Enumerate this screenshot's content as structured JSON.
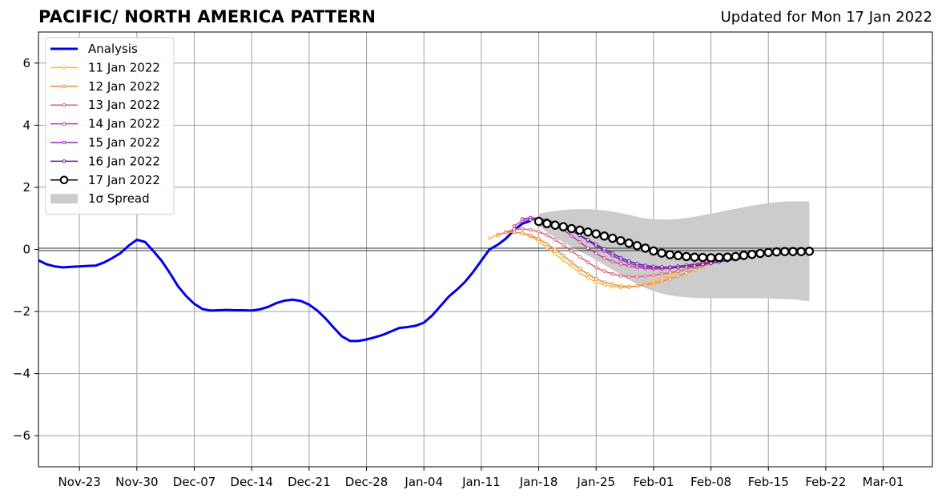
{
  "chart_data": {
    "type": "line",
    "title": "PACIFIC/ NORTH AMERICA PATTERN",
    "subtitle": "Updated for Mon 17 Jan 2022",
    "xlabel": "",
    "ylabel": "",
    "x_ticks": [
      "Nov-23",
      "Nov-30",
      "Dec-07",
      "Dec-14",
      "Dec-21",
      "Dec-28",
      "Jan-04",
      "Jan-11",
      "Jan-18",
      "Jan-25",
      "Feb-01",
      "Feb-08",
      "Feb-15",
      "Feb-22",
      "Mar-01"
    ],
    "x_tick_dates": [
      "2021-11-23",
      "2021-11-30",
      "2021-12-07",
      "2021-12-14",
      "2021-12-21",
      "2021-12-28",
      "2022-01-04",
      "2022-01-11",
      "2022-01-18",
      "2022-01-25",
      "2022-02-01",
      "2022-02-08",
      "2022-02-15",
      "2022-02-22",
      "2022-03-01"
    ],
    "xlim": [
      "2021-11-18",
      "2022-03-07"
    ],
    "ylim": [
      -7,
      7
    ],
    "y_ticks": [
      -6,
      -4,
      -2,
      0,
      2,
      4,
      6
    ],
    "grid": true,
    "legend_position": "top-left",
    "series": [
      {
        "name": "Analysis",
        "color": "#0000ee",
        "style": "thick",
        "points": [
          [
            "2021-11-18",
            -0.35
          ],
          [
            "2021-11-19",
            -0.48
          ],
          [
            "2021-11-20",
            -0.55
          ],
          [
            "2021-11-21",
            -0.58
          ],
          [
            "2021-11-22",
            -0.56
          ],
          [
            "2021-11-23",
            -0.55
          ],
          [
            "2021-11-24",
            -0.53
          ],
          [
            "2021-11-25",
            -0.52
          ],
          [
            "2021-11-26",
            -0.42
          ],
          [
            "2021-11-27",
            -0.28
          ],
          [
            "2021-11-28",
            -0.12
          ],
          [
            "2021-11-29",
            0.12
          ],
          [
            "2021-11-30",
            0.31
          ],
          [
            "2021-12-01",
            0.24
          ],
          [
            "2021-12-02",
            -0.05
          ],
          [
            "2021-12-03",
            -0.36
          ],
          [
            "2021-12-04",
            -0.75
          ],
          [
            "2021-12-05",
            -1.18
          ],
          [
            "2021-12-06",
            -1.5
          ],
          [
            "2021-12-07",
            -1.75
          ],
          [
            "2021-12-08",
            -1.92
          ],
          [
            "2021-12-09",
            -1.97
          ],
          [
            "2021-12-10",
            -1.96
          ],
          [
            "2021-12-11",
            -1.95
          ],
          [
            "2021-12-12",
            -1.96
          ],
          [
            "2021-12-13",
            -1.96
          ],
          [
            "2021-12-14",
            -1.97
          ],
          [
            "2021-12-15",
            -1.93
          ],
          [
            "2021-12-16",
            -1.85
          ],
          [
            "2021-12-17",
            -1.73
          ],
          [
            "2021-12-18",
            -1.65
          ],
          [
            "2021-12-19",
            -1.62
          ],
          [
            "2021-12-20",
            -1.66
          ],
          [
            "2021-12-21",
            -1.78
          ],
          [
            "2021-12-22",
            -1.97
          ],
          [
            "2021-12-23",
            -2.22
          ],
          [
            "2021-12-24",
            -2.52
          ],
          [
            "2021-12-25",
            -2.8
          ],
          [
            "2021-12-26",
            -2.95
          ],
          [
            "2021-12-27",
            -2.95
          ],
          [
            "2021-12-28",
            -2.9
          ],
          [
            "2021-12-29",
            -2.83
          ],
          [
            "2021-12-30",
            -2.75
          ],
          [
            "2021-12-31",
            -2.64
          ],
          [
            "2022-01-01",
            -2.53
          ],
          [
            "2022-01-02",
            -2.5
          ],
          [
            "2022-01-03",
            -2.46
          ],
          [
            "2022-01-04",
            -2.36
          ],
          [
            "2022-01-05",
            -2.13
          ],
          [
            "2022-01-06",
            -1.83
          ],
          [
            "2022-01-07",
            -1.53
          ],
          [
            "2022-01-08",
            -1.3
          ],
          [
            "2022-01-09",
            -1.05
          ],
          [
            "2022-01-10",
            -0.73
          ],
          [
            "2022-01-11",
            -0.36
          ],
          [
            "2022-01-12",
            0.0
          ],
          [
            "2022-01-13",
            0.15
          ],
          [
            "2022-01-14",
            0.35
          ],
          [
            "2022-01-15",
            0.62
          ],
          [
            "2022-01-16",
            0.83
          ],
          [
            "2022-01-17",
            0.92
          ]
        ]
      },
      {
        "name": "11 Jan 2022",
        "color": "#f7b733",
        "start": "2022-01-12",
        "values": [
          0.35,
          0.48,
          0.55,
          0.55,
          0.52,
          0.42,
          0.26,
          0.05,
          -0.15,
          -0.35,
          -0.55,
          -0.75,
          -0.92,
          -1.05,
          -1.15,
          -1.2,
          -1.22,
          -1.22,
          -1.18,
          -1.12,
          -1.04,
          -0.95,
          -0.84,
          -0.72,
          -0.6,
          -0.5,
          -0.4,
          -0.32,
          -0.26,
          -0.22,
          -0.2,
          -0.2
        ]
      },
      {
        "name": "12 Jan 2022",
        "color": "#f0883e",
        "start": "2022-01-13",
        "values": [
          0.45,
          0.56,
          0.56,
          0.52,
          0.45,
          0.34,
          0.18,
          -0.0,
          -0.2,
          -0.42,
          -0.62,
          -0.8,
          -0.95,
          -1.06,
          -1.12,
          -1.18,
          -1.2,
          -1.18,
          -1.15,
          -1.1,
          -1.03,
          -0.95,
          -0.86,
          -0.76,
          -0.65,
          -0.55,
          -0.46,
          -0.38,
          -0.3,
          -0.22,
          -0.16
        ]
      },
      {
        "name": "13 Jan 2022",
        "color": "#d95f6b",
        "start": "2022-01-14",
        "values": [
          0.55,
          0.65,
          0.66,
          0.63,
          0.57,
          0.46,
          0.31,
          0.14,
          -0.05,
          -0.24,
          -0.42,
          -0.58,
          -0.7,
          -0.79,
          -0.85,
          -0.88,
          -0.88,
          -0.86,
          -0.83,
          -0.79,
          -0.75,
          -0.7,
          -0.64,
          -0.57,
          -0.5,
          -0.43,
          -0.36,
          -0.3,
          -0.24,
          -0.18
        ]
      },
      {
        "name": "14 Jan 2022",
        "color": "#bb3f8f",
        "start": "2022-01-15",
        "values": [
          0.75,
          0.92,
          0.97,
          0.96,
          0.9,
          0.79,
          0.63,
          0.44,
          0.24,
          0.04,
          -0.13,
          -0.28,
          -0.39,
          -0.47,
          -0.53,
          -0.58,
          -0.61,
          -0.63,
          -0.63,
          -0.61,
          -0.58,
          -0.54,
          -0.49,
          -0.44,
          -0.39,
          -0.34,
          -0.29,
          -0.25,
          -0.22
        ]
      },
      {
        "name": "15 Jan 2022",
        "color": "#9b22b8",
        "start": "2022-01-16",
        "values": [
          0.98,
          1.02,
          1.0,
          0.95,
          0.87,
          0.76,
          0.62,
          0.45,
          0.28,
          0.11,
          -0.05,
          -0.2,
          -0.33,
          -0.44,
          -0.52,
          -0.57,
          -0.59,
          -0.59,
          -0.57,
          -0.54,
          -0.51,
          -0.47,
          -0.43,
          -0.39,
          -0.34,
          -0.3,
          -0.26,
          -0.23
        ]
      },
      {
        "name": "16 Jan 2022",
        "color": "#5a1ca8",
        "start": "2022-01-17",
        "values": [
          0.95,
          0.97,
          0.92,
          0.83,
          0.72,
          0.6,
          0.46,
          0.31,
          0.16,
          0.01,
          -0.13,
          -0.27,
          -0.38,
          -0.46,
          -0.52,
          -0.55,
          -0.57,
          -0.58,
          -0.58,
          -0.56,
          -0.53,
          -0.48,
          -0.44,
          -0.4,
          -0.36,
          -0.32,
          -0.29
        ]
      },
      {
        "name": "17 Jan 2022",
        "color": "#000000",
        "style": "open-circle",
        "start": "2022-01-18",
        "values": [
          0.9,
          0.83,
          0.78,
          0.73,
          0.67,
          0.62,
          0.56,
          0.5,
          0.43,
          0.36,
          0.28,
          0.2,
          0.12,
          0.04,
          -0.05,
          -0.12,
          -0.17,
          -0.2,
          -0.23,
          -0.25,
          -0.26,
          -0.27,
          -0.26,
          -0.25,
          -0.23,
          -0.19,
          -0.16,
          -0.13,
          -0.1,
          -0.08,
          -0.07,
          -0.07,
          -0.07,
          -0.06
        ]
      }
    ],
    "spread": {
      "name": "1σ Spread",
      "color": "#cccccc",
      "start": "2022-01-18",
      "upper": [
        1.15,
        1.2,
        1.24,
        1.27,
        1.29,
        1.3,
        1.3,
        1.28,
        1.26,
        1.22,
        1.17,
        1.11,
        1.05,
        1.0,
        0.97,
        0.96,
        0.96,
        0.98,
        1.01,
        1.05,
        1.1,
        1.15,
        1.2,
        1.26,
        1.31,
        1.36,
        1.41,
        1.45,
        1.49,
        1.52,
        1.54,
        1.55,
        1.55,
        1.54
      ],
      "lower": [
        0.75,
        0.55,
        0.38,
        0.23,
        0.08,
        -0.06,
        -0.2,
        -0.34,
        -0.5,
        -0.66,
        -0.82,
        -0.98,
        -1.12,
        -1.24,
        -1.34,
        -1.42,
        -1.48,
        -1.52,
        -1.54,
        -1.56,
        -1.57,
        -1.57,
        -1.57,
        -1.57,
        -1.57,
        -1.57,
        -1.57,
        -1.57,
        -1.58,
        -1.59,
        -1.6,
        -1.61,
        -1.64,
        -1.67
      ]
    }
  }
}
